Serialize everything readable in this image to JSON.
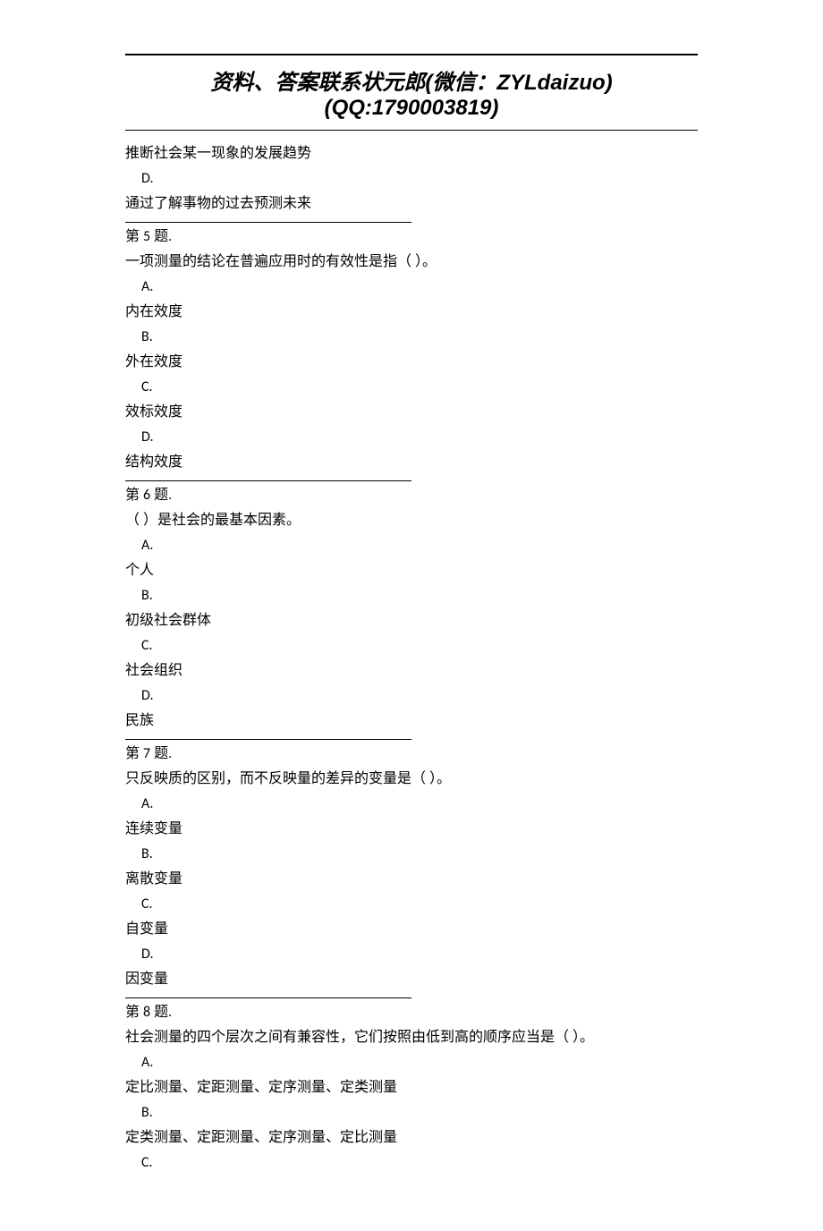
{
  "header": {
    "text": "资料、答案联系状元郎(微信：ZYLdaizuo)(QQ:1790003819)"
  },
  "partial_top": {
    "line1": "推断社会某一现象的发展趋势",
    "option_d_letter": "D.",
    "option_d_text": "通过了解事物的过去预测未来"
  },
  "q5": {
    "title_prefix": "第 ",
    "title_num": "5",
    "title_suffix": " 题.",
    "prompt": "一项测量的结论在普遍应用时的有效性是指（   ）。",
    "a_letter": "A.",
    "a_text": "内在效度",
    "b_letter": "B.",
    "b_text": "外在效度",
    "c_letter": "C.",
    "c_text": "效标效度",
    "d_letter": "D.",
    "d_text": "结构效度"
  },
  "q6": {
    "title_prefix": "第 ",
    "title_num": "6",
    "title_suffix": " 题.",
    "prompt": "（      ）是社会的最基本因素。",
    "a_letter": "A.",
    "a_text": "个人",
    "b_letter": "B.",
    "b_text": "初级社会群体",
    "c_letter": "C.",
    "c_text": "社会组织",
    "d_letter": "D.",
    "d_text": "民族"
  },
  "q7": {
    "title_prefix": "第 ",
    "title_num": "7",
    "title_suffix": " 题.",
    "prompt": "只反映质的区别，而不反映量的差异的变量是（   ）。",
    "a_letter": "A.",
    "a_text": "连续变量",
    "b_letter": "B.",
    "b_text": "离散变量",
    "c_letter": "C.",
    "c_text": "自变量",
    "d_letter": "D.",
    "d_text": "因变量"
  },
  "q8": {
    "title_prefix": "第 ",
    "title_num": "8",
    "title_suffix": " 题.",
    "prompt": "社会测量的四个层次之间有兼容性，它们按照由低到高的顺序应当是（   ）。",
    "a_letter": "A.",
    "a_text": "定比测量、定距测量、定序测量、定类测量",
    "b_letter": "B.",
    "b_text": "定类测量、定距测量、定序测量、定比测量",
    "c_letter": "C."
  }
}
